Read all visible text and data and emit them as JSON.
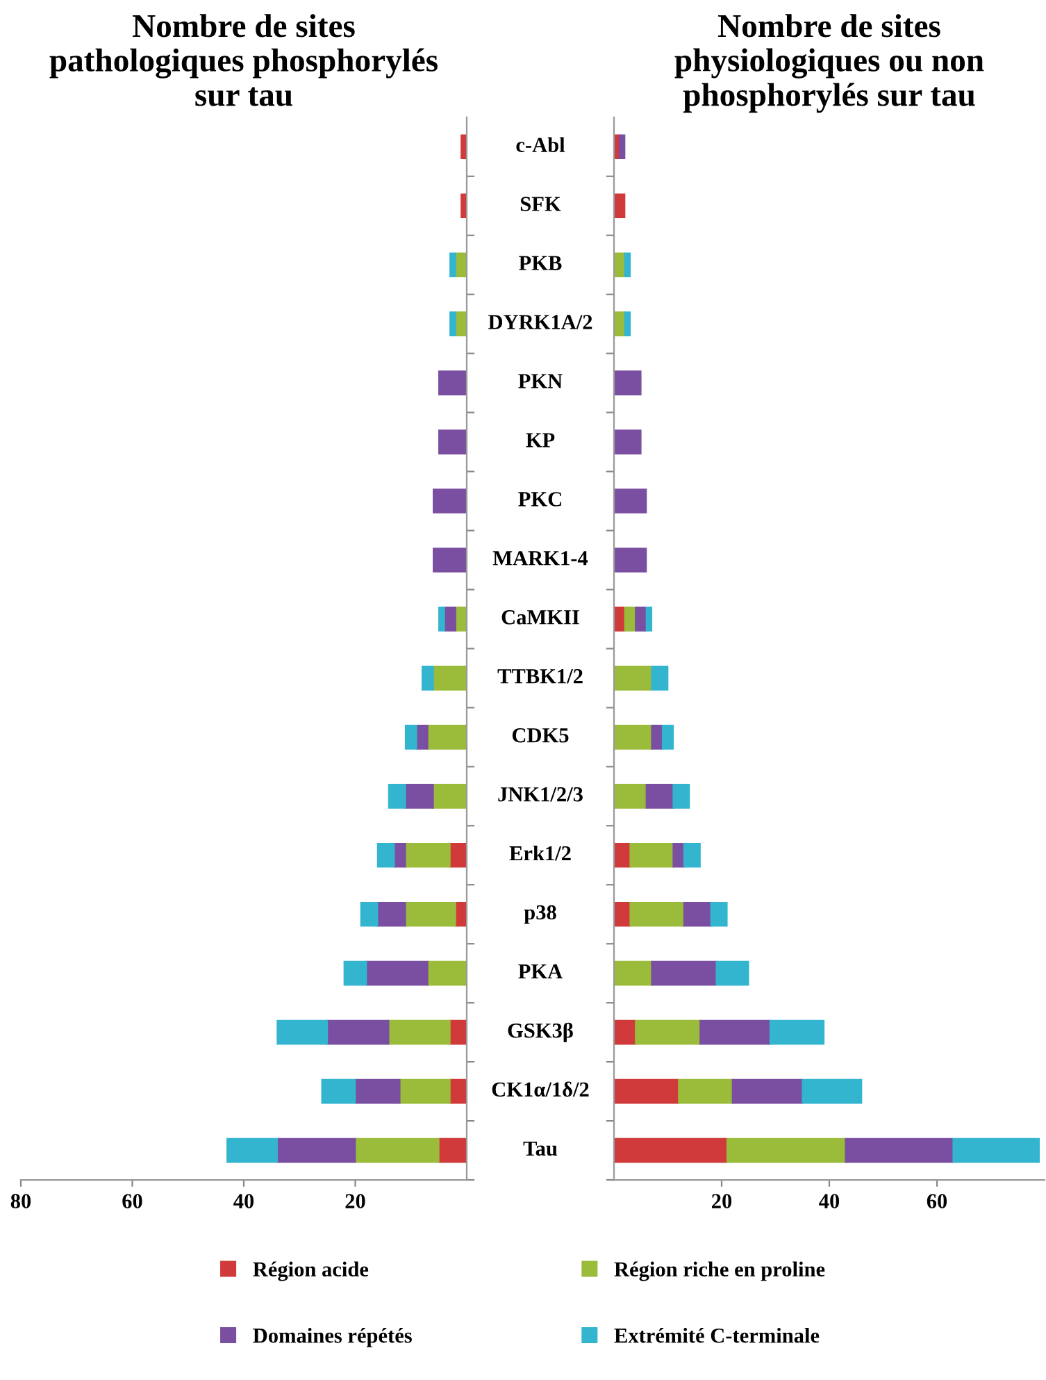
{
  "chart_data": [
    {
      "type": "bar",
      "orientation": "horizontal",
      "stacked": true,
      "title": "Nombre de sites\npathologiques phosphorylés\nsur tau",
      "categories": [
        "c-Abl",
        "SFK",
        "PKB",
        "DYRK1A/2",
        "PKN",
        "KP",
        "PKC",
        "MARK1-4",
        "CaMKII",
        "TTBK1/2",
        "CDK5",
        "JNK1/2/3",
        "Erk1/2",
        "p38",
        "PKA",
        "GSK3β",
        "CK1α/1δ/2",
        "Tau"
      ],
      "series": [
        {
          "name": "Région acide",
          "color": "#d03a3a",
          "values": [
            1,
            1,
            0,
            0,
            0,
            0,
            0,
            0,
            0,
            0,
            0,
            0,
            3,
            2,
            0,
            3,
            3,
            5
          ]
        },
        {
          "name": "Région riche en proline",
          "color": "#9bbb3b",
          "values": [
            0,
            0,
            2,
            2,
            0,
            0,
            0,
            0,
            2,
            6,
            7,
            6,
            8,
            9,
            7,
            11,
            9,
            15
          ]
        },
        {
          "name": "Domaines répétés",
          "color": "#7a4ea0",
          "values": [
            0,
            0,
            0,
            0,
            5,
            5,
            6,
            6,
            2,
            0,
            2,
            5,
            2,
            5,
            11,
            11,
            8,
            14
          ]
        },
        {
          "name": "Extrémité C-terminale",
          "color": "#33b5d0",
          "values": [
            0,
            0,
            1,
            1,
            0,
            0,
            0,
            0,
            1,
            2,
            2,
            3,
            3,
            3,
            4,
            9,
            6,
            9
          ]
        }
      ],
      "xlim": [
        80,
        0
      ],
      "xticks": [
        80,
        60,
        40,
        20
      ],
      "legend": "bottom",
      "grid": false
    },
    {
      "type": "bar",
      "orientation": "horizontal",
      "stacked": true,
      "title": "Nombre de sites\nphysiologiques ou non\nphosphorylés sur tau",
      "categories": [
        null,
        null,
        null,
        null,
        null,
        null,
        null,
        null,
        null,
        null,
        null,
        null,
        null,
        null,
        null,
        null,
        null,
        null
      ],
      "series": [
        {
          "color": "#d03a3a",
          "values": [
            1,
            2,
            0,
            0,
            0,
            0,
            0,
            0,
            2,
            0,
            0,
            0,
            3,
            3,
            0,
            4,
            12,
            21
          ]
        },
        {
          "color": "#9bbb3b",
          "values": [
            0,
            0,
            2,
            2,
            0,
            0,
            0,
            0,
            2,
            7,
            7,
            6,
            8,
            10,
            7,
            12,
            10,
            22
          ]
        },
        {
          "color": "#7a4ea0",
          "values": [
            1,
            0,
            0,
            0,
            5,
            5,
            6,
            6,
            2,
            0,
            2,
            5,
            2,
            5,
            12,
            13,
            13,
            20
          ]
        },
        {
          "color": "#33b5d0",
          "values": [
            0,
            0,
            1,
            1,
            0,
            0,
            0,
            0,
            1,
            3,
            2,
            3,
            3,
            3,
            6,
            10,
            11,
            16
          ]
        }
      ],
      "xlim": [
        0,
        80
      ],
      "xticks": [
        20,
        40,
        60
      ],
      "tick_labels": "x",
      "grid": false
    }
  ]
}
